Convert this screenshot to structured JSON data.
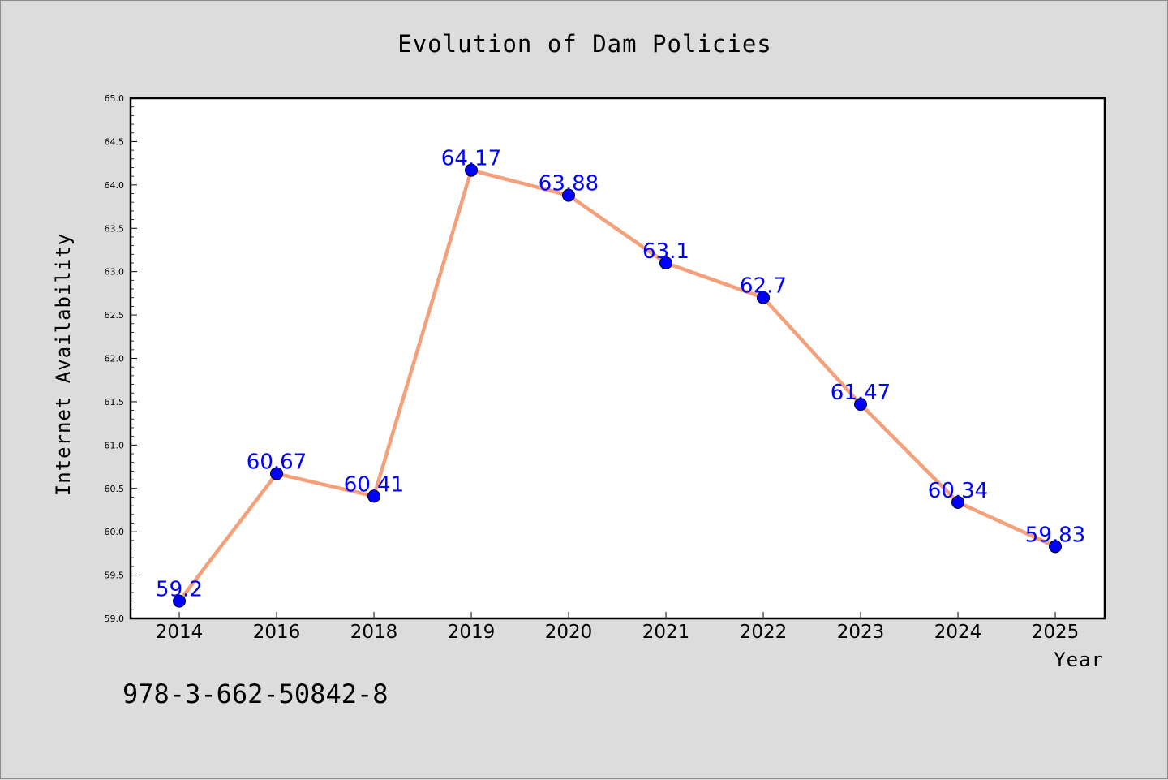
{
  "title": "Evolution of Dam Policies",
  "footer_text": "978-3-662-50842-8",
  "colors": {
    "background": "#dcdcdc",
    "plot_background": "#ffffff",
    "line": "#f4a07a",
    "marker": "#0000ff",
    "data_label": "#0000ff"
  },
  "chart_data": {
    "type": "line",
    "title": "Evolution of Dam Policies",
    "xlabel": "Year",
    "ylabel": "Internet Availability",
    "categories": [
      "2014",
      "2016",
      "2018",
      "2019",
      "2020",
      "2021",
      "2022",
      "2023",
      "2024",
      "2025"
    ],
    "series": [
      {
        "values": [
          59.2,
          60.67,
          60.41,
          64.17,
          63.88,
          63.1,
          62.7,
          61.47,
          60.34,
          59.83
        ],
        "labels": [
          "59.2",
          "60.67",
          "60.41",
          "64.17",
          "63.88",
          "63.1",
          "62.7",
          "61.47",
          "60.34",
          "59.83"
        ]
      }
    ],
    "ylim": [
      59.0,
      65.0
    ],
    "yticks": [
      "59.0",
      "59.5",
      "60.0",
      "60.5",
      "61.0",
      "61.5",
      "62.0",
      "62.5",
      "63.0",
      "63.5",
      "64.0",
      "64.5",
      "65.0"
    ],
    "grid": false,
    "legend": "none",
    "markers": "circle"
  }
}
